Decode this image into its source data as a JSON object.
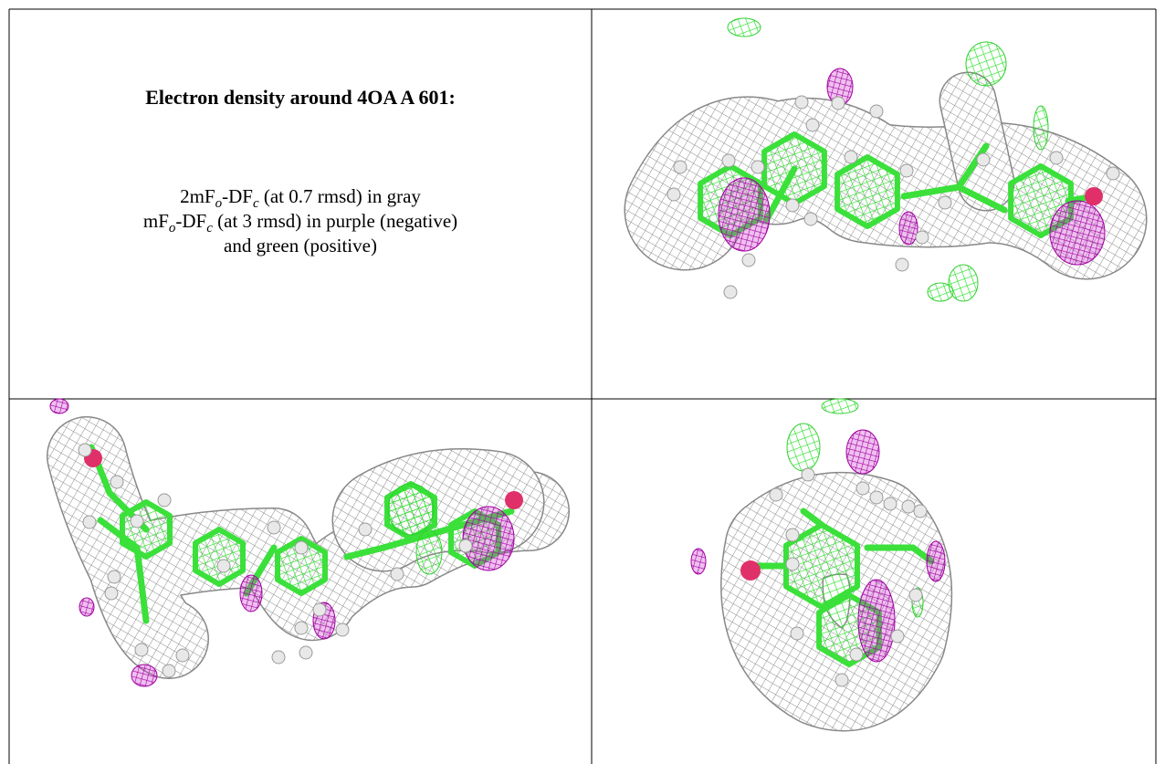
{
  "heading": "Electron density around 4OA A 601:",
  "legend_lines": [
    [
      {
        "text": "2mF"
      },
      {
        "sub": "o"
      },
      {
        "text": "-DF"
      },
      {
        "sub": "c"
      },
      {
        "text": " (at 0.7 rmsd) in gray"
      }
    ],
    [
      {
        "text": "mF"
      },
      {
        "sub": "o"
      },
      {
        "text": "-DF"
      },
      {
        "sub": "c"
      },
      {
        "text": " (at 3 rmsd) in purple (negative)"
      }
    ],
    [
      {
        "text": "and green (positive)"
      }
    ]
  ]
}
